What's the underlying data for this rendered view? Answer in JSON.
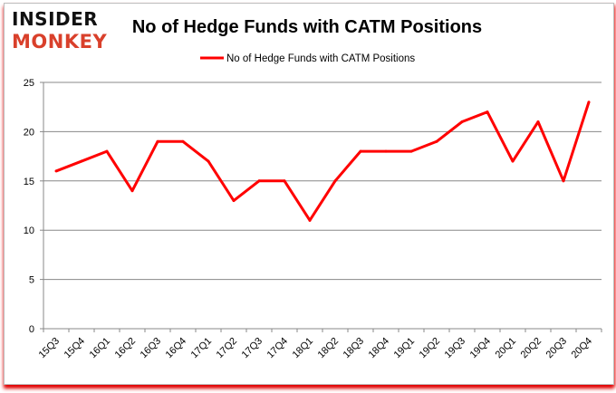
{
  "logo": {
    "line1": "INSIDER",
    "line2": "MONKEY"
  },
  "colors": {
    "series": "#ff0000",
    "logo_top": "#111111",
    "logo_bottom": "#d9402b",
    "grid": "#888888"
  },
  "chart_data": {
    "type": "line",
    "title": "No of Hedge Funds with CATM Positions",
    "xlabel": "",
    "ylabel": "",
    "categories": [
      "15Q3",
      "15Q4",
      "16Q1",
      "16Q2",
      "16Q3",
      "16Q4",
      "17Q1",
      "17Q2",
      "17Q3",
      "17Q4",
      "18Q1",
      "18Q2",
      "18Q3",
      "18Q4",
      "19Q1",
      "19Q2",
      "19Q3",
      "19Q4",
      "20Q1",
      "20Q2",
      "20Q3",
      "20Q4"
    ],
    "series": [
      {
        "name": "No of Hedge Funds with CATM Positions",
        "values": [
          16,
          17,
          18,
          14,
          19,
          19,
          17,
          13,
          15,
          15,
          11,
          15,
          18,
          18,
          18,
          19,
          21,
          22,
          17,
          21,
          15,
          23
        ]
      }
    ],
    "ylim": [
      0,
      25
    ],
    "yticks": [
      0,
      5,
      10,
      15,
      20,
      25
    ],
    "grid": true,
    "legend": "top-center"
  }
}
